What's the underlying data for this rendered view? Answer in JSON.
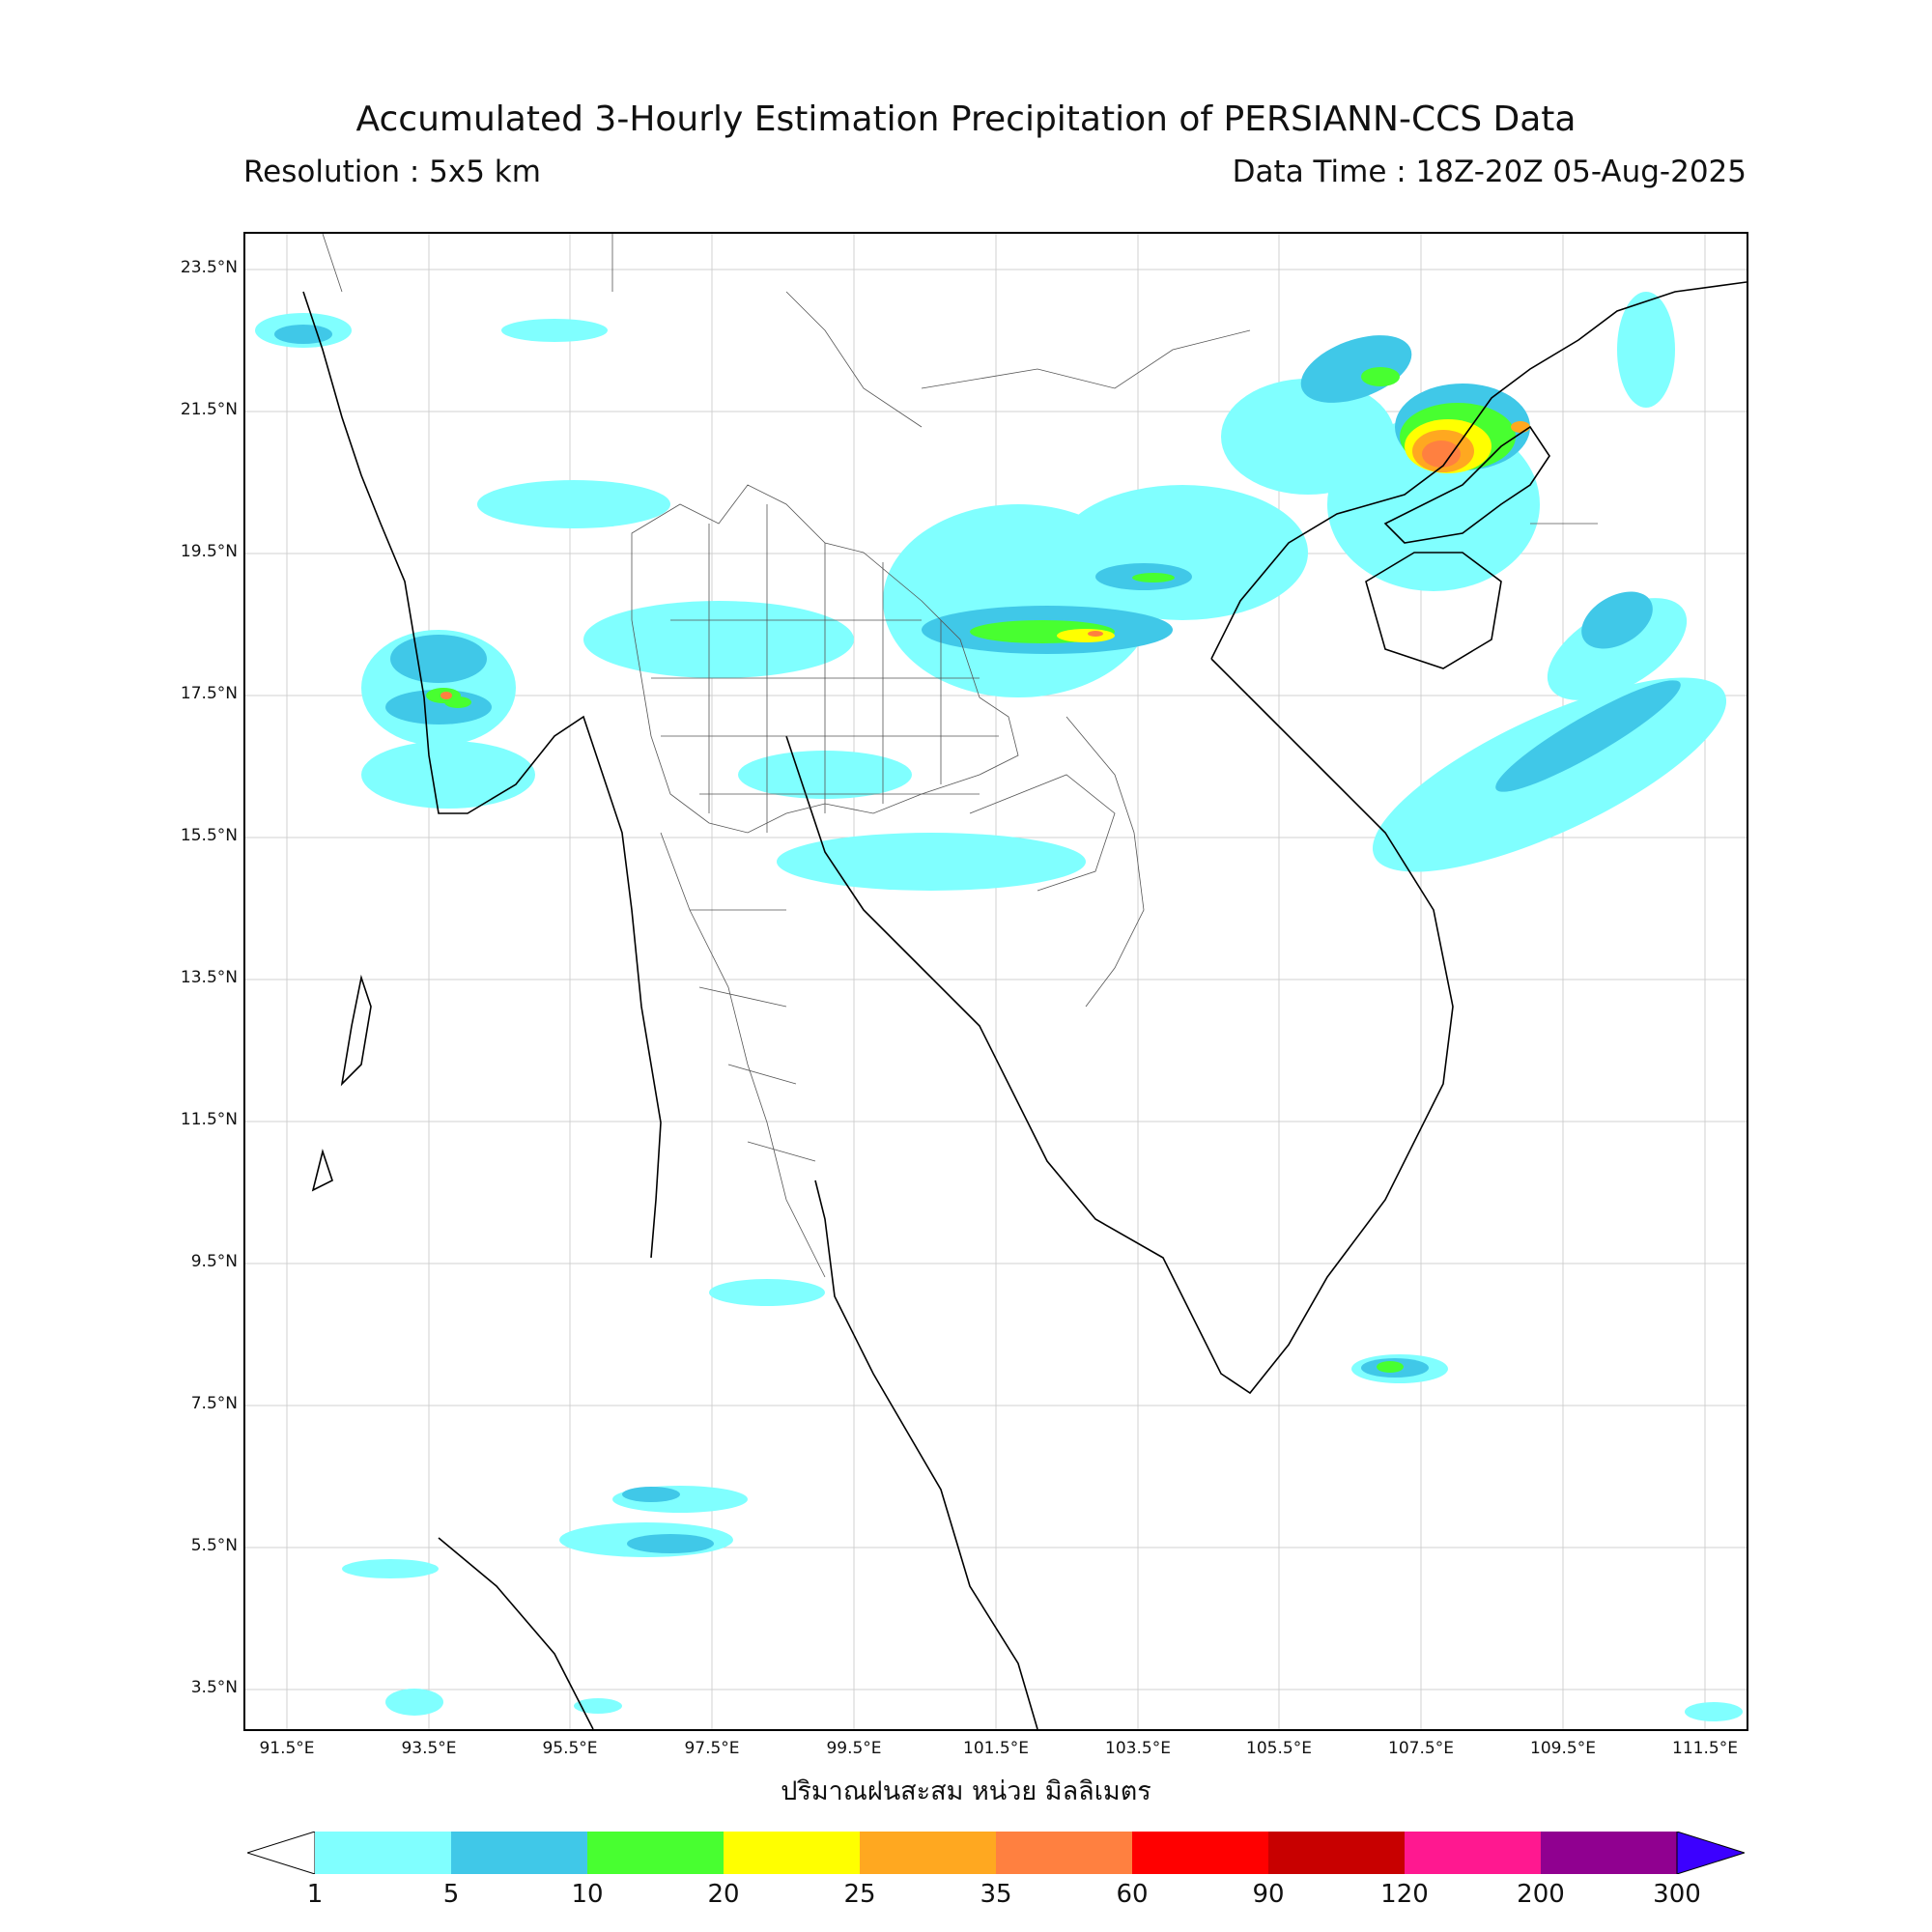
{
  "title": "Accumulated 3-Hourly Estimation Precipitation of PERSIANN-CCS Data",
  "resolution": "Resolution : 5x5 km",
  "data_time": "Data Time : 18Z-20Z 05-Aug-2025",
  "xlabel": "ปริมาณฝนสะสม หน่วย มิลลิเมตร",
  "lat_labels": [
    "23.5°N",
    "21.5°N",
    "19.5°N",
    "17.5°N",
    "15.5°N",
    "13.5°N",
    "11.5°N",
    "9.5°N",
    "7.5°N",
    "5.5°N",
    "3.5°N"
  ],
  "lon_labels": [
    "91.5°E",
    "93.5°E",
    "95.5°E",
    "97.5°E",
    "99.5°E",
    "101.5°E",
    "103.5°E",
    "105.5°E",
    "107.5°E",
    "109.5°E",
    "111.5°E"
  ],
  "colorbar": {
    "levels": [
      "1",
      "5",
      "10",
      "20",
      "25",
      "35",
      "60",
      "90",
      "120",
      "200",
      "300"
    ],
    "colors": [
      "#80ffff",
      "#40c8e8",
      "#48ff30",
      "#ffff00",
      "#ffa820",
      "#ff8040",
      "#ff0000",
      "#c80000",
      "#ff1890",
      "#900090",
      "#3c00ff"
    ]
  }
}
